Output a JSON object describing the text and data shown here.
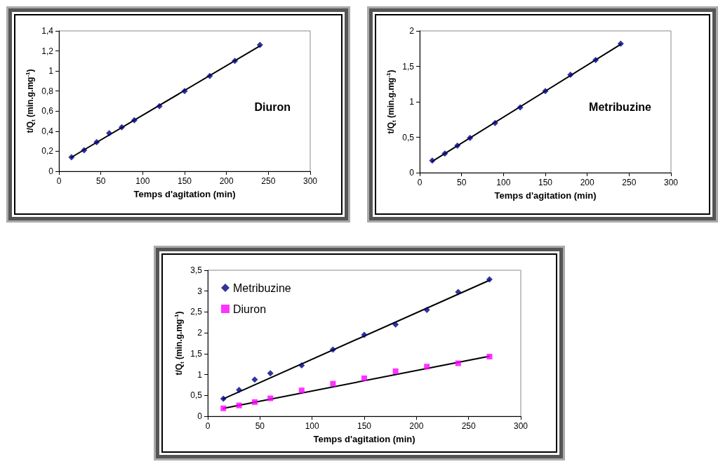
{
  "chart_data": [
    {
      "type": "scatter",
      "xlabel": "Temps d'agitation (min)",
      "ylabel": "t/Q$_{t}$ (min.g.mg$^{-1}$)",
      "annotations": [
        "Diuron"
      ],
      "xlim": [
        0,
        300
      ],
      "xticks": [
        0,
        50,
        100,
        150,
        200,
        250,
        300
      ],
      "ylim": [
        0,
        1.4
      ],
      "yticks": [
        0,
        {
          "value": 0.2,
          "label": "0,2"
        },
        {
          "value": 0.4,
          "label": "0,4"
        },
        {
          "value": 0.6,
          "label": "0,6"
        },
        {
          "value": 0.8,
          "label": "0,8"
        },
        1,
        {
          "value": 1.2,
          "label": "1,2"
        },
        {
          "value": 1.4,
          "label": "1,4"
        }
      ],
      "grid": false,
      "legend": false,
      "series": [
        {
          "type": "scatter",
          "marker": "diamond",
          "color": "#000080",
          "x": [
            15,
            30,
            45,
            60,
            75,
            90,
            120,
            150,
            180,
            210,
            240
          ],
          "values": [
            0.14,
            0.21,
            0.29,
            0.38,
            0.44,
            0.51,
            0.65,
            0.8,
            0.95,
            1.1,
            1.26
          ]
        },
        {
          "type": "line",
          "marker": "none",
          "color": "#000000",
          "x": [
            15,
            240
          ],
          "values": [
            0.14,
            1.25
          ]
        }
      ]
    },
    {
      "type": "scatter",
      "xlabel": "Temps d'agitation (min)",
      "ylabel": "t/Q$_{t}$ (min.g.mg$^{-1}$)",
      "annotations": [
        "Metribuzine"
      ],
      "xlim": [
        0,
        300
      ],
      "xticks": [
        0,
        50,
        100,
        150,
        200,
        250,
        300
      ],
      "ylim": [
        0,
        2
      ],
      "yticks": [
        0,
        {
          "value": 0.5,
          "label": "0,5"
        },
        1,
        {
          "value": 1.5,
          "label": "1,5"
        },
        2
      ],
      "grid": false,
      "legend": false,
      "series": [
        {
          "type": "scatter",
          "marker": "diamond",
          "color": "#000080",
          "x": [
            15,
            30,
            45,
            60,
            90,
            120,
            150,
            180,
            210,
            240
          ],
          "values": [
            0.17,
            0.27,
            0.38,
            0.49,
            0.7,
            0.92,
            1.15,
            1.38,
            1.59,
            1.82
          ]
        },
        {
          "type": "line",
          "marker": "none",
          "color": "#000000",
          "x": [
            15,
            240
          ],
          "values": [
            0.16,
            1.81
          ]
        }
      ]
    },
    {
      "type": "scatter",
      "xlabel": "Temps d'agitation (min)",
      "ylabel": "t/Q$_{t}$ (min.g.mg$^{-1}$)",
      "xlim": [
        0,
        300
      ],
      "xticks": [
        0,
        50,
        100,
        150,
        200,
        250,
        300
      ],
      "ylim": [
        0,
        3.5
      ],
      "yticks": [
        0,
        {
          "value": 0.5,
          "label": "0,5"
        },
        1,
        {
          "value": 1.5,
          "label": "1,5"
        },
        2,
        {
          "value": 2.5,
          "label": "2,5"
        },
        3,
        {
          "value": 3.5,
          "label": "3,5"
        }
      ],
      "grid": false,
      "legend": "top left",
      "series": [
        {
          "type": "scatter",
          "name": "Metribuzine",
          "marker": "diamond",
          "color": "#000080",
          "x": [
            15,
            30,
            45,
            60,
            90,
            120,
            150,
            180,
            210,
            240,
            270
          ],
          "values": [
            0.42,
            0.63,
            0.88,
            1.03,
            1.22,
            1.6,
            1.95,
            2.2,
            2.55,
            2.98,
            3.28
          ]
        },
        {
          "type": "scatter",
          "name": "Diuron",
          "marker": "square",
          "color": "#ff00ff",
          "x": [
            15,
            30,
            45,
            60,
            90,
            120,
            150,
            180,
            210,
            240,
            270
          ],
          "values": [
            0.19,
            0.26,
            0.34,
            0.43,
            0.62,
            0.78,
            0.91,
            1.08,
            1.19,
            1.27,
            1.43
          ]
        },
        {
          "type": "line",
          "marker": "none",
          "color": "#000000",
          "x": [
            15,
            270
          ],
          "values": [
            0.42,
            3.26
          ]
        },
        {
          "type": "line",
          "marker": "none",
          "color": "#000000",
          "x": [
            15,
            270
          ],
          "values": [
            0.19,
            1.44
          ]
        }
      ]
    }
  ]
}
